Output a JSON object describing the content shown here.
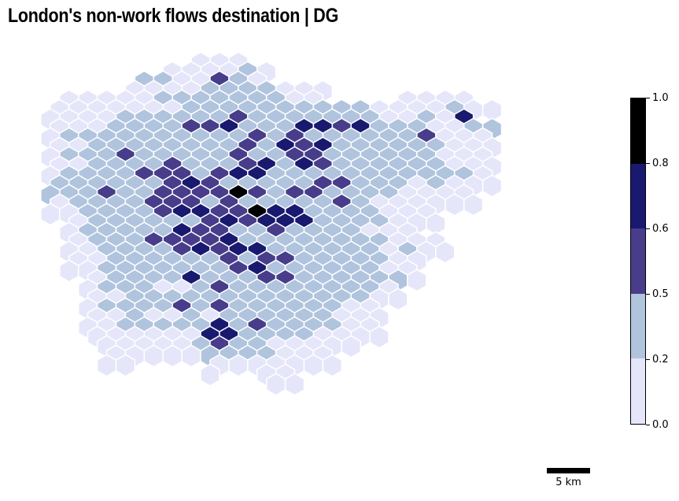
{
  "title": "London's non-work flows destination | DG",
  "colorbar": {
    "ticks": [
      "0.0",
      "0.2",
      "0.5",
      "0.6",
      "0.8",
      "1.0"
    ],
    "classes": [
      {
        "from": 0.0,
        "to": 0.2,
        "color": "#e6e6fa"
      },
      {
        "from": 0.2,
        "to": 0.5,
        "color": "#b0c4de"
      },
      {
        "from": 0.5,
        "to": 0.6,
        "color": "#483d8b"
      },
      {
        "from": 0.6,
        "to": 0.8,
        "color": "#191970"
      },
      {
        "from": 0.8,
        "to": 1.0,
        "color": "#000000"
      }
    ]
  },
  "scalebar": {
    "label": "5 km"
  },
  "hex_rows": [
    "..........aaa.............",
    "........aaaaba............",
    ".......bbaacba............",
    "......aaaabbbbaaa.........",
    "...aaaaabbbbbbbaa....aaaa.",
    "..aaaaaaabbbbbbbbbbaaaabaa",
    "..aaaabbbbbbcbbbbbbbaabad.",
    "..aaabbbbccdbbbddcdbbbaabb",
    "..abbbbbbbbbbcbcbbbbbbcaaa",
    "..aabbbbbbbbcbdcdbbbbbbaaa",
    "..abbbcbbbbbcbbccbbbbbbaaa",
    "..aabbbbcbbbcdbdcbbbbbbaaa",
    "..abbbbcccbcddbbbbbbbbbbba",
    "..bbbbbbcdcbbbbbccbbbabaaa",
    "..bbbcbbccccecbccbbbbaaaa.",
    "..abbbbcccbcbbbbbcbaaaaaa.",
    "..aabbbbcddcceddbbbbaaa...",
    "...abbbbbbcdcdddbbbbaaa...",
    "...abbbbbdccbbcbbbbaaa....",
    "...abbbccccdbbbbbbbbaaa...",
    "...aabbbbcdcddbbbbbbabaa..",
    "...aabbbbbbcbccbbbbbaa....",
    "...aabbbbbbbcdbbbbbbaa....",
    "....abbbbdbbbccbbbbbba....",
    "....abbbaabcbbbbbbbba.....",
    "....aabbbbbbbbbbbbbaa.....",
    "....abbbbcbcbbbbbbaa......",
    "....aabaababbbbbbaaa......",
    "....aabbbbbdbcbbbbaa......",
    "....aaaaaaddbbbbaaaa......",
    ".....aaaaabcbbaaaaa.......",
    ".....aaaaabbbbaaa.........",
    ".....aa....aaaaaaa........",
    "..........a..aa...........",
    "..............aa.........."
  ]
}
